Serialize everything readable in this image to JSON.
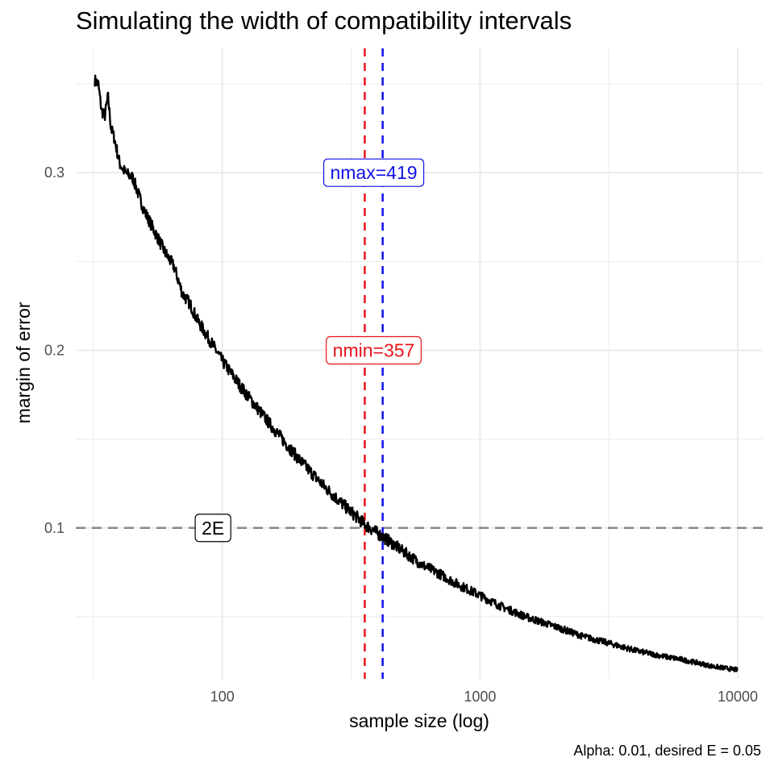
{
  "chart_data": {
    "type": "line",
    "title": "Simulating the width of compatibility intervals",
    "caption": "Alpha: 0.01, desired E = 0.05",
    "xlabel": "sample size (log)",
    "ylabel": "margin of error",
    "x_scale": "log10",
    "xlim": [
      27,
      12500
    ],
    "ylim": [
      0.015,
      0.37
    ],
    "x_ticks": [
      100,
      1000,
      10000
    ],
    "x_tick_labels": [
      "100",
      "1000",
      "10000"
    ],
    "x_minor_ticks": [
      31.6,
      316,
      3160
    ],
    "y_ticks": [
      0.1,
      0.2,
      0.3
    ],
    "y_tick_labels": [
      "0.1",
      "0.2",
      "0.3"
    ],
    "y_minor_ticks": [
      0.05,
      0.15,
      0.25,
      0.35
    ],
    "grid": true,
    "series": [
      {
        "color": "#000000",
        "x": [
          32,
          33,
          34,
          35,
          36,
          37,
          38,
          40,
          42,
          45,
          48,
          50,
          55,
          60,
          65,
          70,
          75,
          80,
          90,
          100,
          120,
          150,
          180,
          200,
          250,
          300,
          357,
          400,
          450,
          500,
          600,
          700,
          800,
          1000,
          1200,
          1500,
          2000,
          2500,
          3000,
          4000,
          5000,
          6000,
          7000,
          8000,
          10000
        ],
        "y": [
          0.352,
          0.35,
          0.335,
          0.332,
          0.343,
          0.325,
          0.32,
          0.305,
          0.3,
          0.297,
          0.285,
          0.278,
          0.266,
          0.255,
          0.247,
          0.232,
          0.226,
          0.217,
          0.205,
          0.194,
          0.178,
          0.16,
          0.146,
          0.138,
          0.123,
          0.112,
          0.102,
          0.097,
          0.092,
          0.087,
          0.079,
          0.074,
          0.069,
          0.062,
          0.056,
          0.05,
          0.044,
          0.039,
          0.036,
          0.031,
          0.028,
          0.026,
          0.024,
          0.022,
          0.02
        ],
        "noise_amplitude": 0.0035
      }
    ],
    "reference_lines": [
      {
        "orientation": "horizontal",
        "value": 0.1,
        "color": "#888888",
        "style": "dashed",
        "label": "2E",
        "label_x": 92,
        "label_color": "#000000"
      },
      {
        "orientation": "vertical",
        "value": 357,
        "color": "#e8141c",
        "style": "dashed",
        "label": "nmin=357",
        "label_y": 0.2,
        "label_color": "#e8141c"
      },
      {
        "orientation": "vertical",
        "value": 419,
        "color": "#1010e8",
        "style": "dashed",
        "label": "nmax=419",
        "label_y": 0.3,
        "label_color": "#1010e8"
      }
    ]
  }
}
